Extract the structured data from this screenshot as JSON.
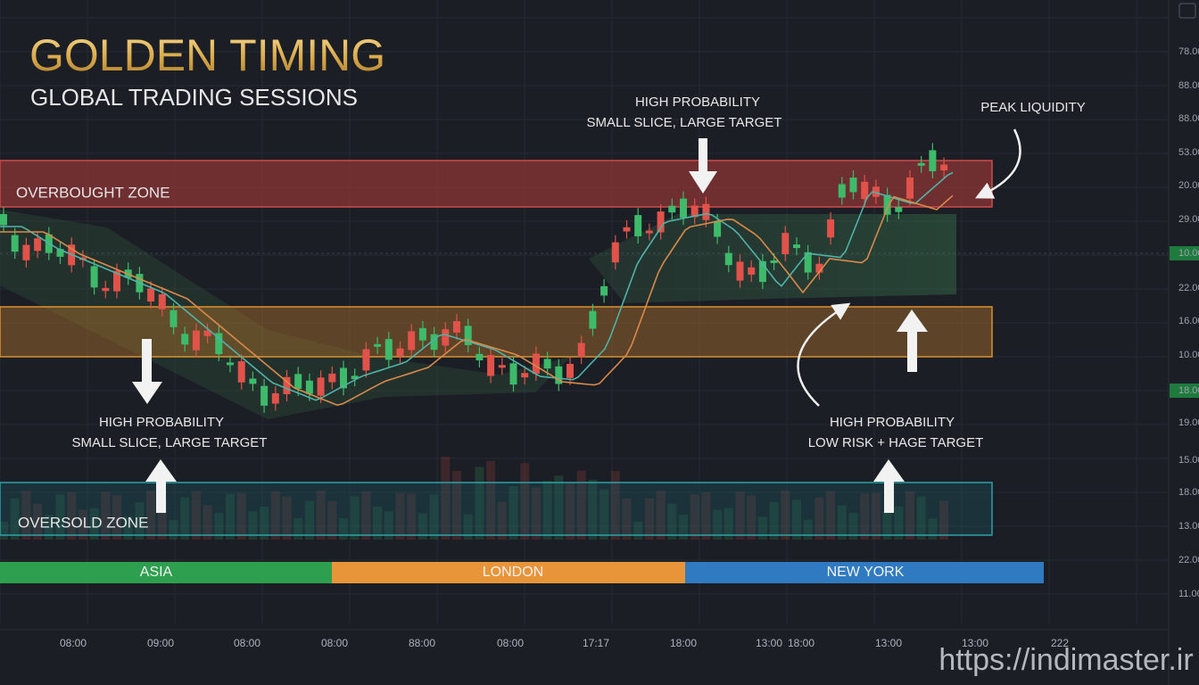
{
  "header": {
    "title": "GOLDEN TIMING",
    "subtitle": "GLOBAL TRADING SESSIONS"
  },
  "zones": {
    "overbought": "OVERBOUGHT ZONE",
    "oversold": "OVERSOLD ZONE"
  },
  "sessions": [
    "ASIA",
    "LONDON",
    "NEW YORK"
  ],
  "annotations": {
    "top": {
      "line1": "HIGH PROBABILITY",
      "line2": "SMALL SLICE, LARGE TARGET"
    },
    "peak": "PEAK LIQUIDITY",
    "left": {
      "line1": "HIGH PROBABILITY",
      "line2": "SMALL SLICE, LARGE TARGET"
    },
    "right": {
      "line1": "HIGH PROBABILITY",
      "line2": "LOW RISK + HAGE TARGET"
    }
  },
  "time_labels": [
    "08:00",
    "09:00",
    "08:00",
    "08:00",
    "88:00",
    "08:00",
    "17:17",
    "18:00",
    "13:00",
    "18:00",
    "13:00",
    "13:00",
    "222"
  ],
  "price_labels": [
    "78.00",
    "88.00",
    "88.00",
    "53.00",
    "20.00",
    "29.00",
    "10.00",
    "22.00",
    "16.00",
    "10.00",
    "18.00",
    "19.00",
    "15.00",
    "18.00",
    "13.00",
    "22.00",
    "11.00"
  ],
  "watermark": "https://indimaster.ir"
}
